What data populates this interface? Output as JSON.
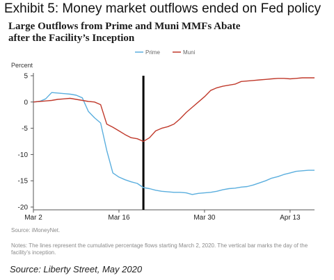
{
  "exhibit_title": "Exhibit 5: Money market outflows ended on Fed policy",
  "chart_title": [
    "Large Outflows from Prime and Muni MMFs Abate",
    "after the Facility’s Inception"
  ],
  "source_note": "Source: iMoneyNet.",
  "notes": "Notes: The lines represent the cumulative percentage flows starting March 2, 2020. The vertical bar marks the day of the facility’s inception.",
  "footer_source": "Source: Liberty Street, May 2020",
  "colors": {
    "prime": "#5aaede",
    "muni": "#c0392b",
    "event_bar": "#000000",
    "axis": "#555555"
  },
  "chart_data": {
    "type": "line",
    "title": "Large Outflows from Prime and Muni MMFs Abate after the Facility’s Inception",
    "ylabel": "Percent",
    "xlabel": "",
    "ylim": [
      -20,
      5
    ],
    "xlim": [
      0,
      46
    ],
    "x_unit": "days since March 2, 2020",
    "yticks": [
      5,
      0,
      -5,
      -10,
      -15,
      -20
    ],
    "xticks": [
      {
        "x": 0,
        "label": "Mar 2"
      },
      {
        "x": 14,
        "label": "Mar 16"
      },
      {
        "x": 28,
        "label": "Mar 30"
      },
      {
        "x": 42,
        "label": "Apr 13"
      }
    ],
    "legend": {
      "placement": "top-center"
    },
    "event_line": {
      "x": 18,
      "label": "facility inception"
    },
    "series": [
      {
        "name": "Prime",
        "color": "#5aaede",
        "x": [
          0,
          1,
          2,
          3,
          4,
          5,
          6,
          7,
          8,
          9,
          10,
          11,
          12,
          13,
          14,
          15,
          16,
          17,
          18,
          19,
          20,
          21,
          22,
          23,
          24,
          25,
          26,
          27,
          28,
          29,
          30,
          31,
          32,
          33,
          34,
          35,
          36,
          37,
          38,
          39,
          40,
          41,
          42,
          43,
          44,
          45,
          46
        ],
        "values": [
          0,
          0.1,
          0.6,
          1.8,
          1.7,
          1.6,
          1.5,
          1.3,
          0.8,
          -1.8,
          -3,
          -4,
          -9.2,
          -13.5,
          -14.3,
          -14.8,
          -15.2,
          -15.5,
          -16.3,
          -16.5,
          -16.8,
          -17,
          -17.1,
          -17.2,
          -17.2,
          -17.3,
          -17.6,
          -17.4,
          -17.3,
          -17.2,
          -17,
          -16.7,
          -16.5,
          -16.4,
          -16.2,
          -16.1,
          -15.8,
          -15.4,
          -15,
          -14.5,
          -14.2,
          -13.8,
          -13.5,
          -13.2,
          -13.1,
          -13,
          -13
        ]
      },
      {
        "name": "Muni",
        "color": "#c0392b",
        "x": [
          0,
          1,
          2,
          3,
          4,
          5,
          6,
          7,
          8,
          9,
          10,
          11,
          12,
          13,
          14,
          15,
          16,
          17,
          18,
          19,
          20,
          21,
          22,
          23,
          24,
          25,
          26,
          27,
          28,
          29,
          30,
          31,
          32,
          33,
          34,
          35,
          36,
          37,
          38,
          39,
          40,
          41,
          42,
          43,
          44,
          45,
          46
        ],
        "values": [
          0,
          0.1,
          0.2,
          0.3,
          0.5,
          0.6,
          0.7,
          0.5,
          0.3,
          0.1,
          0,
          -0.5,
          -4.2,
          -4.8,
          -5.5,
          -6.2,
          -6.8,
          -7,
          -7.5,
          -6.8,
          -5.5,
          -5,
          -4.7,
          -4.2,
          -3.2,
          -2,
          -1,
          0,
          1,
          2.2,
          2.7,
          3,
          3.2,
          3.4,
          3.9,
          4,
          4.1,
          4.2,
          4.3,
          4.4,
          4.5,
          4.5,
          4.4,
          4.5,
          4.6,
          4.6,
          4.6
        ]
      }
    ]
  }
}
